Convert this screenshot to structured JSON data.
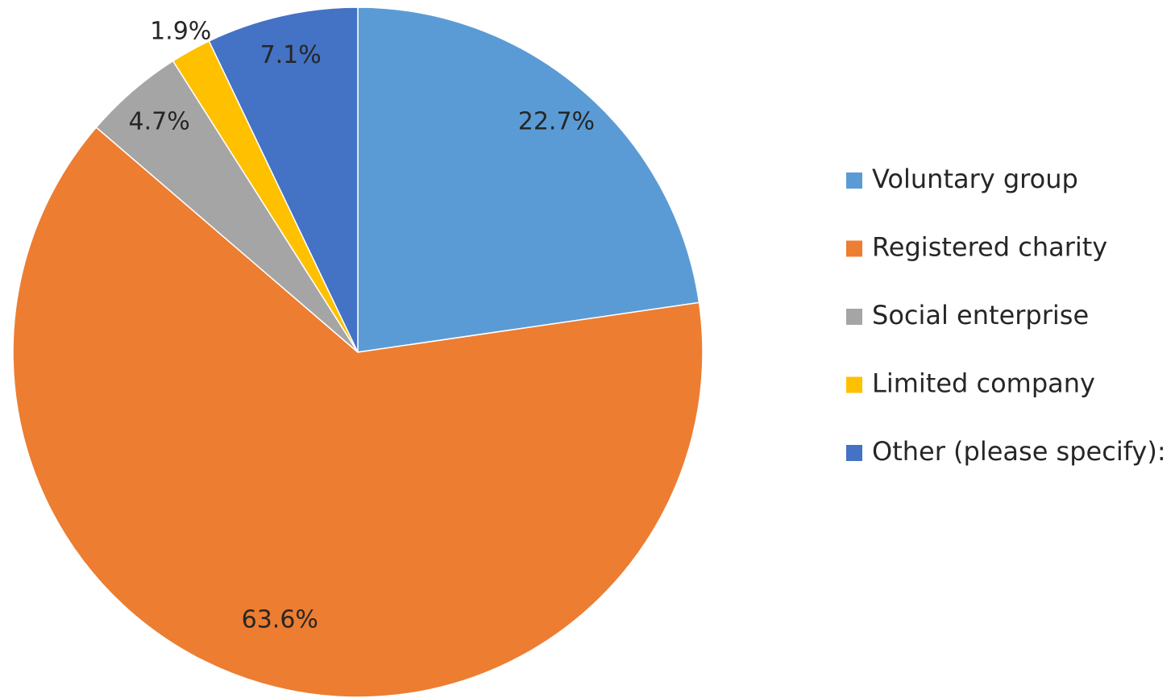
{
  "chart_data": {
    "type": "pie",
    "categories": [
      "Voluntary group",
      "Registered charity",
      "Social enterprise",
      "Limited company",
      "Other (please specify):"
    ],
    "values": [
      22.7,
      63.6,
      4.7,
      1.9,
      7.1
    ],
    "value_labels": [
      "22.7%",
      "63.6%",
      "4.7%",
      "1.9%",
      "7.1%"
    ],
    "colors": [
      "#5b9bd5",
      "#ed7d31",
      "#a5a5a5",
      "#ffc000",
      "#4472c4"
    ],
    "legend": "right"
  }
}
